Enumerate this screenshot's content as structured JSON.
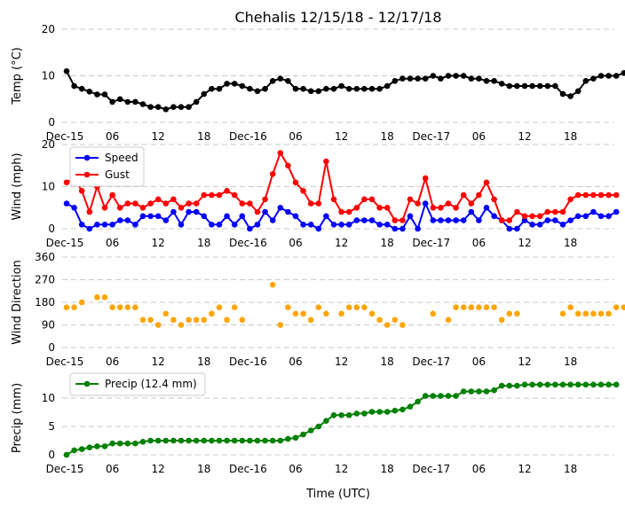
{
  "title": "Chehalis 12/15/18 - 12/17/18",
  "xlabel": "Time (UTC)",
  "x_tick_labels": [
    "Dec-15",
    "06",
    "12",
    "18",
    "Dec-16",
    "06",
    "12",
    "18",
    "Dec-17",
    "06",
    "12",
    "18"
  ],
  "chart_data": [
    {
      "type": "line",
      "ylabel": "Temp (°C)",
      "ylim": [
        0,
        20
      ],
      "yticks": [
        0,
        10,
        20
      ],
      "grid": true,
      "x_unit": "hours since Dec-15 00:00",
      "series": [
        {
          "color": "#000000",
          "values": [
            11,
            7.8,
            7.2,
            6.6,
            6,
            6,
            4.4,
            5,
            4.4,
            4.4,
            3.9,
            3.3,
            3.3,
            2.8,
            3.3,
            3.3,
            3.3,
            4.4,
            6.1,
            7.2,
            7.2,
            8.3,
            8.3,
            7.8,
            7.2,
            6.7,
            7.2,
            8.9,
            9.4,
            8.9,
            7.2,
            7.2,
            6.7,
            6.7,
            7.2,
            7.2,
            7.8,
            7.2,
            7.2,
            7.2,
            7.2,
            7.2,
            7.8,
            8.9,
            9.4,
            9.4,
            9.4,
            9.4,
            10,
            9.4,
            10,
            10,
            10,
            9.4,
            9.4,
            8.9,
            8.9,
            8.3,
            7.8,
            7.8,
            7.8,
            7.8,
            7.8,
            7.8,
            7.8,
            6.1,
            5.6,
            6.7,
            8.9,
            9.4,
            10,
            10,
            10,
            10.6
          ]
        }
      ]
    },
    {
      "type": "line",
      "ylabel": "Wind (mph)",
      "ylim": [
        0,
        20
      ],
      "yticks": [
        0,
        10,
        20
      ],
      "grid": true,
      "legend": "upper-left",
      "series": [
        {
          "name": "Speed",
          "color": "#0000ff",
          "values": [
            6,
            5,
            1,
            0,
            1,
            1,
            1,
            2,
            2,
            1,
            3,
            3,
            3,
            2,
            4,
            1,
            4,
            4,
            3,
            1,
            1,
            3,
            1,
            3,
            0,
            1,
            4,
            2,
            5,
            4,
            3,
            1,
            1,
            0,
            3,
            1,
            1,
            1,
            2,
            2,
            2,
            1,
            1,
            0,
            0,
            3,
            0,
            6,
            2,
            2,
            2,
            2,
            2,
            4,
            2,
            5,
            3,
            2,
            0,
            0,
            2,
            1,
            1,
            2,
            2,
            1,
            2,
            3,
            3,
            4,
            3,
            3,
            4
          ]
        },
        {
          "name": "Gust",
          "color": "#ff0000",
          "values": [
            11,
            12,
            9,
            4,
            10,
            5,
            8,
            5,
            6,
            6,
            5,
            6,
            7,
            6,
            7,
            5,
            6,
            6,
            8,
            8,
            8,
            9,
            8,
            6,
            6,
            4,
            7,
            13,
            18,
            15,
            11,
            9,
            6,
            6,
            16,
            7,
            4,
            4,
            5,
            7,
            7,
            5,
            5,
            2,
            2,
            7,
            6,
            12,
            5,
            5,
            6,
            5,
            8,
            6,
            8,
            11,
            7,
            2,
            2,
            4,
            3,
            3,
            3,
            4,
            4,
            4,
            7,
            8,
            8,
            8,
            8,
            8,
            8
          ]
        }
      ]
    },
    {
      "type": "scatter",
      "ylabel": "Wind Direction",
      "ylim": [
        0,
        360
      ],
      "yticks": [
        0,
        90,
        180,
        270,
        360
      ],
      "grid": true,
      "series": [
        {
          "color": "#ffa500",
          "points": [
            [
              0,
              160
            ],
            [
              1,
              160
            ],
            [
              2,
              180
            ],
            [
              4,
              200
            ],
            [
              5,
              200
            ],
            [
              6,
              160
            ],
            [
              7,
              160
            ],
            [
              8,
              160
            ],
            [
              9,
              160
            ],
            [
              10,
              110
            ],
            [
              11,
              110
            ],
            [
              12,
              90
            ],
            [
              13,
              135
            ],
            [
              14,
              110
            ],
            [
              15,
              90
            ],
            [
              16,
              110
            ],
            [
              17,
              110
            ],
            [
              18,
              110
            ],
            [
              19,
              135
            ],
            [
              20,
              160
            ],
            [
              21,
              110
            ],
            [
              22,
              160
            ],
            [
              23,
              110
            ],
            [
              27,
              250
            ],
            [
              28,
              90
            ],
            [
              29,
              160
            ],
            [
              30,
              135
            ],
            [
              31,
              135
            ],
            [
              32,
              110
            ],
            [
              33,
              160
            ],
            [
              34,
              135
            ],
            [
              36,
              135
            ],
            [
              37,
              160
            ],
            [
              38,
              160
            ],
            [
              39,
              160
            ],
            [
              40,
              135
            ],
            [
              41,
              110
            ],
            [
              42,
              90
            ],
            [
              43,
              110
            ],
            [
              44,
              90
            ],
            [
              48,
              135
            ],
            [
              50,
              110
            ],
            [
              51,
              160
            ],
            [
              52,
              160
            ],
            [
              53,
              160
            ],
            [
              54,
              160
            ],
            [
              55,
              160
            ],
            [
              56,
              160
            ],
            [
              57,
              110
            ],
            [
              58,
              135
            ],
            [
              59,
              135
            ],
            [
              65,
              135
            ],
            [
              66,
              160
            ],
            [
              67,
              135
            ],
            [
              68,
              135
            ],
            [
              69,
              135
            ],
            [
              70,
              135
            ],
            [
              71,
              135
            ],
            [
              72,
              160
            ],
            [
              73,
              160
            ],
            [
              74,
              160
            ],
            [
              75,
              160
            ],
            [
              76,
              160
            ],
            [
              77,
              160
            ],
            [
              78,
              160
            ]
          ]
        }
      ]
    },
    {
      "type": "line",
      "ylabel": "Precip (mm)",
      "ylim": [
        0,
        13
      ],
      "yticks": [
        0,
        5,
        10
      ],
      "grid": true,
      "legend": "upper-left",
      "series": [
        {
          "name": "Precip (12.4 mm)",
          "color": "#008000",
          "values": [
            0,
            0.8,
            1,
            1.3,
            1.5,
            1.5,
            2,
            2,
            2,
            2,
            2.3,
            2.5,
            2.5,
            2.5,
            2.5,
            2.5,
            2.5,
            2.5,
            2.5,
            2.5,
            2.5,
            2.5,
            2.5,
            2.5,
            2.5,
            2.5,
            2.5,
            2.5,
            2.5,
            2.8,
            3,
            3.6,
            4.3,
            5,
            6,
            7,
            7,
            7,
            7.3,
            7.3,
            7.6,
            7.6,
            7.6,
            7.8,
            8,
            8.5,
            9.4,
            10.4,
            10.4,
            10.4,
            10.4,
            10.4,
            11.2,
            11.2,
            11.2,
            11.2,
            11.4,
            12.2,
            12.2,
            12.2,
            12.4,
            12.4,
            12.4,
            12.4,
            12.4,
            12.4,
            12.4,
            12.4,
            12.4,
            12.4,
            12.4,
            12.4,
            12.4
          ]
        }
      ]
    }
  ]
}
